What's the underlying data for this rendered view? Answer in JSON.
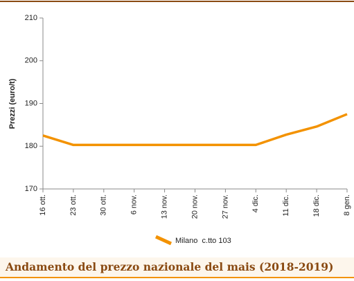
{
  "chart_data": {
    "type": "line",
    "title": "Andamento del prezzo nazionale del mais (2018-2019)",
    "y_label": "Prezzi (euro/t)",
    "categories": [
      "16 ott.",
      "23 ott.",
      "30 ott.",
      "6 nov.",
      "13 nov.",
      "20 nov.",
      "27 nov.",
      "4 dic.",
      "11 dic.",
      "18 dic.",
      "8 gen."
    ],
    "series": [
      {
        "name": "Milano  c.tto 103",
        "color": "#f39200",
        "values": [
          182.5,
          180.3,
          180.3,
          180.3,
          180.3,
          180.3,
          180.3,
          180.3,
          182.7,
          184.6,
          187.5
        ]
      }
    ],
    "ylim": [
      170,
      210
    ],
    "yticks": [
      170,
      180,
      190,
      200,
      210
    ],
    "grid": false
  }
}
